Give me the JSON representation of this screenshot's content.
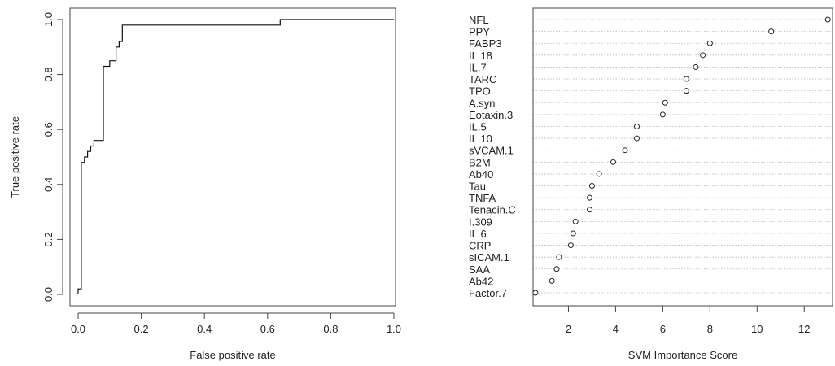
{
  "chart_data": [
    {
      "type": "line",
      "xlabel": "False positive rate",
      "ylabel": "True positive rate",
      "xlim": [
        0,
        1
      ],
      "ylim": [
        0,
        1
      ],
      "xticks": [
        "0.0",
        "0.2",
        "0.4",
        "0.6",
        "0.8",
        "1.0"
      ],
      "yticks": [
        "0.0",
        "0.2",
        "0.4",
        "0.6",
        "0.8",
        "1.0"
      ],
      "grid": false,
      "series": [
        {
          "points": [
            [
              0.0,
              0.0
            ],
            [
              0.0,
              0.02
            ],
            [
              0.01,
              0.02
            ],
            [
              0.01,
              0.48
            ],
            [
              0.02,
              0.48
            ],
            [
              0.02,
              0.5
            ],
            [
              0.03,
              0.5
            ],
            [
              0.03,
              0.52
            ],
            [
              0.04,
              0.52
            ],
            [
              0.04,
              0.54
            ],
            [
              0.05,
              0.54
            ],
            [
              0.05,
              0.56
            ],
            [
              0.08,
              0.56
            ],
            [
              0.08,
              0.83
            ],
            [
              0.1,
              0.83
            ],
            [
              0.1,
              0.85
            ],
            [
              0.12,
              0.85
            ],
            [
              0.12,
              0.9
            ],
            [
              0.13,
              0.9
            ],
            [
              0.13,
              0.92
            ],
            [
              0.14,
              0.92
            ],
            [
              0.14,
              0.98
            ],
            [
              0.64,
              0.98
            ],
            [
              0.64,
              1.0
            ],
            [
              1.0,
              1.0
            ]
          ]
        }
      ]
    },
    {
      "type": "scatter",
      "xlabel": "SVM Importance Score",
      "ylabel": "",
      "xlim": [
        0.5,
        13.2
      ],
      "xticks": [
        "2",
        "4",
        "6",
        "8",
        "10",
        "12"
      ],
      "grid": true,
      "categories": [
        "NFL",
        "PPY",
        "FABP3",
        "IL.18",
        "IL.7",
        "TARC",
        "TPO",
        "A.syn",
        "Eotaxin.3",
        "IL.5",
        "IL.10",
        "sVCAM.1",
        "B2M",
        "Ab40",
        "Tau",
        "TNFA",
        "Tenacin.C",
        "I.309",
        "IL.6",
        "CRP",
        "sICAM.1",
        "SAA",
        "Ab42",
        "Factor.7"
      ],
      "values": [
        13.0,
        10.6,
        8.0,
        7.7,
        7.4,
        7.0,
        7.0,
        6.1,
        6.0,
        4.9,
        4.9,
        4.4,
        3.9,
        3.3,
        3.0,
        2.9,
        2.9,
        2.3,
        2.2,
        2.1,
        1.6,
        1.5,
        1.3,
        0.6
      ]
    }
  ]
}
